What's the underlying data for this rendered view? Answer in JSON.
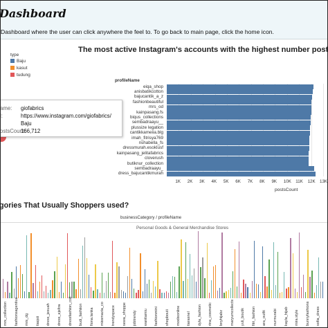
{
  "header": {
    "title": "Dashboard",
    "subtitle": "Dashboard where the user can click anywhere the feel to. To go back to main page, click the home icon."
  },
  "legend": {
    "title": "type",
    "items": [
      {
        "label": "Baju",
        "color": "#4e79a7"
      },
      {
        "label": "kasut",
        "color": "#f28e2b"
      },
      {
        "label": "tudung",
        "color": "#e15759"
      }
    ]
  },
  "tooltip": {
    "rows": [
      {
        "key": "ame:",
        "value": "giofabrics"
      },
      {
        "key": "l:",
        "value": "https://www.instagram.com/giofabrics/"
      },
      {
        "key": "",
        "value": "Baju"
      },
      {
        "key": "ostsCount:",
        "value": "166,712"
      }
    ]
  },
  "chart_data": [
    {
      "type": "bar",
      "title": "The most active Instagram's accounts with the highest number poste",
      "ylabel": "profileName",
      "xlabel": "postsCount",
      "categories": [
        "eiqa_shop",
        "anisbatikcotton",
        "bajucantik_a_z",
        "fashionbeautiful",
        "mrs_od",
        "kainpasang.fs",
        "biqus_collections",
        "sembadraayu__",
        "plussize legation",
        "cantikkameiia.blg",
        "imah_fitrisya769",
        "nshabella_fs",
        "dressmurah.esokIusf",
        "kainpasang_jelitafabrics",
        "cloverush",
        "butiknur_collection",
        "sembadraayu_",
        "dress_bajucantikmurah"
      ],
      "values": [
        12200,
        12150,
        12100,
        12050,
        12000,
        12000,
        11950,
        11950,
        11900,
        11900,
        11850,
        11850,
        11850,
        11800,
        11800,
        11800,
        12250,
        12350
      ],
      "xticks": [
        "1K",
        "2K",
        "3K",
        "4K",
        "5K",
        "6K",
        "7K",
        "8K",
        "9K",
        "10K",
        "11K",
        "12K",
        "13K"
      ],
      "xlim": [
        0,
        13000
      ]
    },
    {
      "type": "bar",
      "title": "gories That Usually Shoppers used?",
      "header": "businessCategory / profileName",
      "category": "Personal Goods & General Merchandise Stores",
      "labels": [
        "mrs_collection",
        "fashionsagentiue",
        "mrs_dg",
        "tiaqsii",
        "dress_jesuah",
        "dress_ejeltra",
        "dressfashion_coll",
        "budi_fashiion",
        "fiona.lanka",
        "missmazia_co",
        "trendyspace",
        "sewa_shoppe",
        "jobtrendy",
        "wanitamiu",
        "fashionmini",
        "shopbouti",
        "modisonline",
        "tiarasnel",
        "dyla_fashion",
        "rina_cosmetic",
        "bnyhijabz",
        "maryumcollects",
        "yuli_boutik",
        "fitri_fashion",
        "ara_outfit",
        "nurmurabi",
        "kayla_hijab",
        "mira.style",
        "bunnyfashions",
        "sofia_dress"
      ]
    }
  ]
}
